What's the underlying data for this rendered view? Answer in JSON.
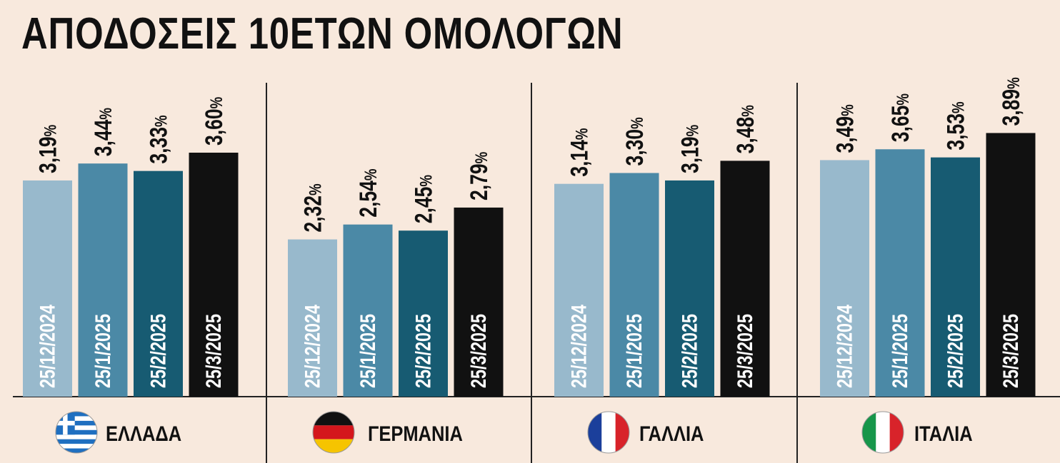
{
  "title": "ΑΠΟΔΟΣΕΙΣ 10ΕΤΩΝ ΟΜΟΛΟΓΩΝ",
  "colors": {
    "background": "#f8e9dd",
    "series": [
      "#98b9cc",
      "#4b89a6",
      "#175b72",
      "#111111"
    ]
  },
  "chart_data": {
    "type": "bar",
    "title": "ΑΠΟΔΟΣΕΙΣ 10ΕΤΩΝ ΟΜΟΛΟΓΩΝ",
    "unit": "%",
    "categories": [
      "ΕΛΛΑΔΑ",
      "ΓΕΡΜΑΝΙΑ",
      "ΓΑΛΛΙΑ",
      "ΙΤΑΛΙΑ"
    ],
    "flags": [
      "greece-flag-icon",
      "germany-flag-icon",
      "france-flag-icon",
      "italy-flag-icon"
    ],
    "dates": [
      "25/12/2024",
      "25/1/2025",
      "25/2/2025",
      "25/3/2025"
    ],
    "series": [
      {
        "name": "25/12/2024",
        "values": [
          3.19,
          2.32,
          3.14,
          3.49
        ],
        "labels": [
          "3,19",
          "2,32",
          "3,14",
          "3,49"
        ]
      },
      {
        "name": "25/1/2025",
        "values": [
          3.44,
          2.54,
          3.3,
          3.65
        ],
        "labels": [
          "3,44",
          "2,54",
          "3,30",
          "3,65"
        ]
      },
      {
        "name": "25/2/2025",
        "values": [
          3.33,
          2.45,
          3.19,
          3.53
        ],
        "labels": [
          "3,33",
          "2,45",
          "3,19",
          "3,53"
        ]
      },
      {
        "name": "25/3/2025",
        "values": [
          3.6,
          2.79,
          3.48,
          3.89
        ],
        "labels": [
          "3,60",
          "2,79",
          "3,48",
          "3,89"
        ]
      }
    ],
    "ylim": [
      0,
      4.25
    ],
    "grid": false,
    "legend": "none"
  }
}
